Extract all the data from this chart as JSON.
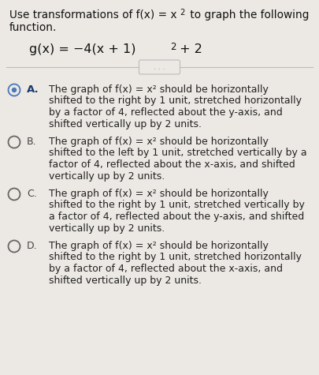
{
  "background_color": "#ece9e4",
  "text_color": "#222222",
  "title_color": "#111111",
  "formula_color": "#111111",
  "radio_color_A": "#4a78b8",
  "radio_color_other": "#666666",
  "label_color_A": "#1a3a6b",
  "label_color_other": "#444444",
  "font_size_title": 9.8,
  "font_size_formula": 11.5,
  "font_size_option_label": 9.5,
  "font_size_option_text": 9.0,
  "options": [
    {
      "label": "A.",
      "selected": true,
      "lines": [
        "The graph of f(x) = x² should be horizontally",
        "shifted to the right by 1 unit, stretched horizontally",
        "by a factor of 4, reflected about the y-axis, and",
        "shifted vertically up by 2 units."
      ]
    },
    {
      "label": "B.",
      "selected": false,
      "lines": [
        "The graph of f(x) = x² should be horizontally",
        "shifted to the left by 1 unit, stretched vertically by a",
        "factor of 4, reflected about the x-axis, and shifted",
        "vertically up by 2 units."
      ]
    },
    {
      "label": "C.",
      "selected": false,
      "lines": [
        "The graph of f(x) = x² should be horizontally",
        "shifted to the right by 1 unit, stretched vertically by",
        "a factor of 4, reflected about the y-axis, and shifted",
        "vertically up by 2 units."
      ]
    },
    {
      "label": "D.",
      "selected": false,
      "lines": [
        "The graph of f(x) = x² should be horizontally",
        "shifted to the right by 1 unit, stretched horizontally",
        "by a factor of 4, reflected about the x-axis, and",
        "shifted vertically up by 2 units."
      ]
    }
  ]
}
